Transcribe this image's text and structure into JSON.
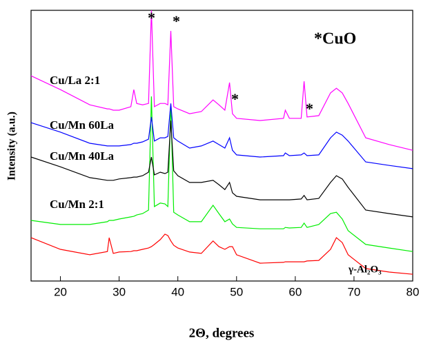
{
  "chart_data": {
    "type": "line",
    "xlabel": "2Θ, degrees",
    "ylabel": "Intensity (a.u.)",
    "xlim": [
      15,
      80
    ],
    "ylim": [
      0,
      100
    ],
    "xticks": [
      20,
      30,
      40,
      50,
      60,
      70,
      80
    ],
    "annotations": [
      "*",
      "*",
      "*",
      "*",
      "*CuO"
    ],
    "x": [
      15,
      20,
      25,
      28,
      28.3,
      29,
      30,
      32,
      32.5,
      33,
      34,
      35,
      35.5,
      36,
      37,
      37.8,
      38.3,
      38.8,
      39.3,
      40,
      42,
      44,
      46,
      47,
      48,
      48.8,
      49.3,
      50,
      54,
      58,
      58.3,
      59,
      61,
      61.5,
      62,
      64,
      66,
      67,
      68,
      69,
      72,
      76,
      80
    ],
    "series": [
      {
        "name": "γ-Al₂O₃",
        "color": "#ff0000",
        "values": [
          16.0,
          11.7,
          9.7,
          10.9,
          16.0,
          10.2,
          10.7,
          10.9,
          11.2,
          11.2,
          11.7,
          12.2,
          12.7,
          13.5,
          15.3,
          17.3,
          16.8,
          14.8,
          13.2,
          12.2,
          10.7,
          10.2,
          14.8,
          12.7,
          11.7,
          12.7,
          12.7,
          9.7,
          6.6,
          6.9,
          7.1,
          7.1,
          7.1,
          7.1,
          7.4,
          7.6,
          11.7,
          16.0,
          14.2,
          9.7,
          4.6,
          3.3,
          2.5
        ]
      },
      {
        "name": "Cu/Mn 2:1",
        "color": "#00ee00",
        "values": [
          22.4,
          20.9,
          20.9,
          21.9,
          22.4,
          22.4,
          22.9,
          23.7,
          23.9,
          24.4,
          24.9,
          26.2,
          68.2,
          27.5,
          28.8,
          28.5,
          27.5,
          64.4,
          25.4,
          24.4,
          21.9,
          21.9,
          28.0,
          24.9,
          21.9,
          22.9,
          21.1,
          19.8,
          19.3,
          19.3,
          19.8,
          19.6,
          19.8,
          21.4,
          19.8,
          20.9,
          24.9,
          25.4,
          22.9,
          18.6,
          13.5,
          12.2,
          10.9
        ]
      },
      {
        "name": "Cu/Mn 40La",
        "color": "#000000",
        "values": [
          45.8,
          42.2,
          38.2,
          37.2,
          37.2,
          37.2,
          37.7,
          38.2,
          38.4,
          38.4,
          38.9,
          40.2,
          45.8,
          39.2,
          40.2,
          39.7,
          40.2,
          59.3,
          40.7,
          38.9,
          36.4,
          36.4,
          37.2,
          35.6,
          33.8,
          36.4,
          32.6,
          31.3,
          30.0,
          30.0,
          30.0,
          30.0,
          30.3,
          31.6,
          30.0,
          30.5,
          36.4,
          38.9,
          37.7,
          34.6,
          26.2,
          24.9,
          23.7
        ]
      },
      {
        "name": "Cu/Mn 60La",
        "color": "#0000ff",
        "values": [
          58.5,
          55.0,
          50.9,
          49.9,
          49.9,
          49.9,
          49.9,
          50.4,
          50.9,
          50.9,
          51.4,
          52.4,
          60.6,
          51.7,
          52.9,
          52.9,
          53.4,
          65.6,
          52.9,
          51.7,
          49.1,
          49.9,
          51.7,
          50.4,
          49.1,
          52.9,
          48.3,
          46.6,
          45.8,
          46.3,
          47.3,
          46.3,
          46.6,
          47.3,
          46.3,
          46.6,
          52.9,
          55.0,
          53.9,
          51.7,
          44.0,
          42.7,
          41.5
        ]
      },
      {
        "name": "Cu/La 2:1",
        "color": "#ff00ff",
        "values": [
          75.8,
          70.7,
          65.1,
          63.6,
          63.6,
          63.1,
          63.1,
          64.4,
          70.7,
          65.6,
          65.1,
          65.6,
          100,
          64.4,
          65.6,
          65.6,
          65.1,
          92.4,
          64.4,
          63.6,
          61.8,
          62.6,
          66.9,
          65.1,
          63.1,
          73.3,
          61.8,
          60.1,
          59.3,
          60.1,
          63.1,
          60.1,
          60.1,
          73.8,
          60.6,
          61.1,
          69.5,
          71.2,
          69.5,
          65.6,
          52.9,
          50.4,
          48.3
        ]
      }
    ]
  }
}
